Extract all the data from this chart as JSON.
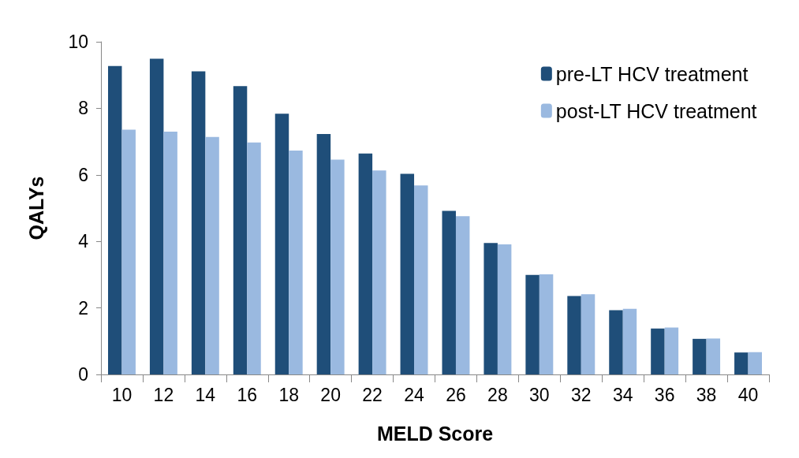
{
  "chart_data": {
    "type": "bar",
    "xlabel": "MELD Score",
    "ylabel": "QALYs",
    "categories": [
      "10",
      "12",
      "14",
      "16",
      "18",
      "20",
      "22",
      "24",
      "26",
      "28",
      "30",
      "32",
      "34",
      "36",
      "38",
      "40"
    ],
    "series": [
      {
        "name": "pre-LT HCV treatment",
        "color": "#1f4e79",
        "values": [
          9.27,
          9.49,
          9.11,
          8.67,
          7.84,
          7.23,
          6.64,
          6.03,
          4.92,
          3.95,
          2.99,
          2.36,
          1.93,
          1.38,
          1.07,
          0.66
        ]
      },
      {
        "name": "post-LT HCV treatment",
        "color": "#9ab9e0",
        "values": [
          7.36,
          7.3,
          7.14,
          6.97,
          6.73,
          6.46,
          6.13,
          5.68,
          4.76,
          3.91,
          3.01,
          2.41,
          1.97,
          1.41,
          1.08,
          0.67
        ]
      }
    ],
    "ylim": [
      0,
      10
    ],
    "yticks": [
      0,
      2,
      4,
      6,
      8,
      10
    ],
    "grid": false,
    "legend": "top right"
  }
}
